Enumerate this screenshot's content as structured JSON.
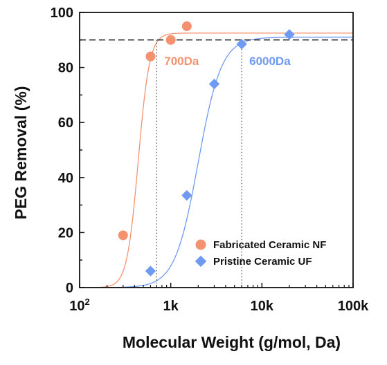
{
  "chart_data": {
    "type": "scatter",
    "title": "",
    "xlabel": "Molecular Weight (g/mol, Da)",
    "ylabel": "PEG Removal (%)",
    "xscale": "log",
    "xlim": [
      100,
      100000
    ],
    "ylim": [
      0,
      100
    ],
    "x_ticks": [
      {
        "value": 100,
        "base": "10",
        "exp": "2"
      },
      {
        "value": 1000,
        "label": "1k"
      },
      {
        "value": 10000,
        "label": "10k"
      },
      {
        "value": 100000,
        "label": "100k"
      }
    ],
    "y_ticks": [
      0,
      20,
      40,
      60,
      80,
      100
    ],
    "grid": false,
    "legend_position": "bottom-right",
    "reference_line": {
      "y": 90,
      "style": "dashed",
      "color": "#333333"
    },
    "series": [
      {
        "name": "Fabricated Ceramic NF",
        "marker": "circle",
        "color": "#F4926F",
        "points": [
          {
            "x": 300,
            "y": 19
          },
          {
            "x": 600,
            "y": 84
          },
          {
            "x": 1000,
            "y": 90
          },
          {
            "x": 1500,
            "y": 95
          }
        ],
        "fit": {
          "top": 92.5,
          "bottom": 0,
          "x50": 440,
          "hill": 7
        },
        "cutoff": {
          "x": 700,
          "label": "700Da"
        }
      },
      {
        "name": "Pristine Ceramic UF",
        "marker": "diamond",
        "color": "#6F9AF2",
        "points": [
          {
            "x": 600,
            "y": 6
          },
          {
            "x": 1500,
            "y": 33.5
          },
          {
            "x": 3000,
            "y": 74
          },
          {
            "x": 6000,
            "y": 88.5
          },
          {
            "x": 20000,
            "y": 92
          }
        ],
        "fit": {
          "top": 91,
          "bottom": 0,
          "x50": 2000,
          "hill": 3.4
        },
        "cutoff": {
          "x": 6000,
          "label": "6000Da"
        }
      }
    ]
  }
}
